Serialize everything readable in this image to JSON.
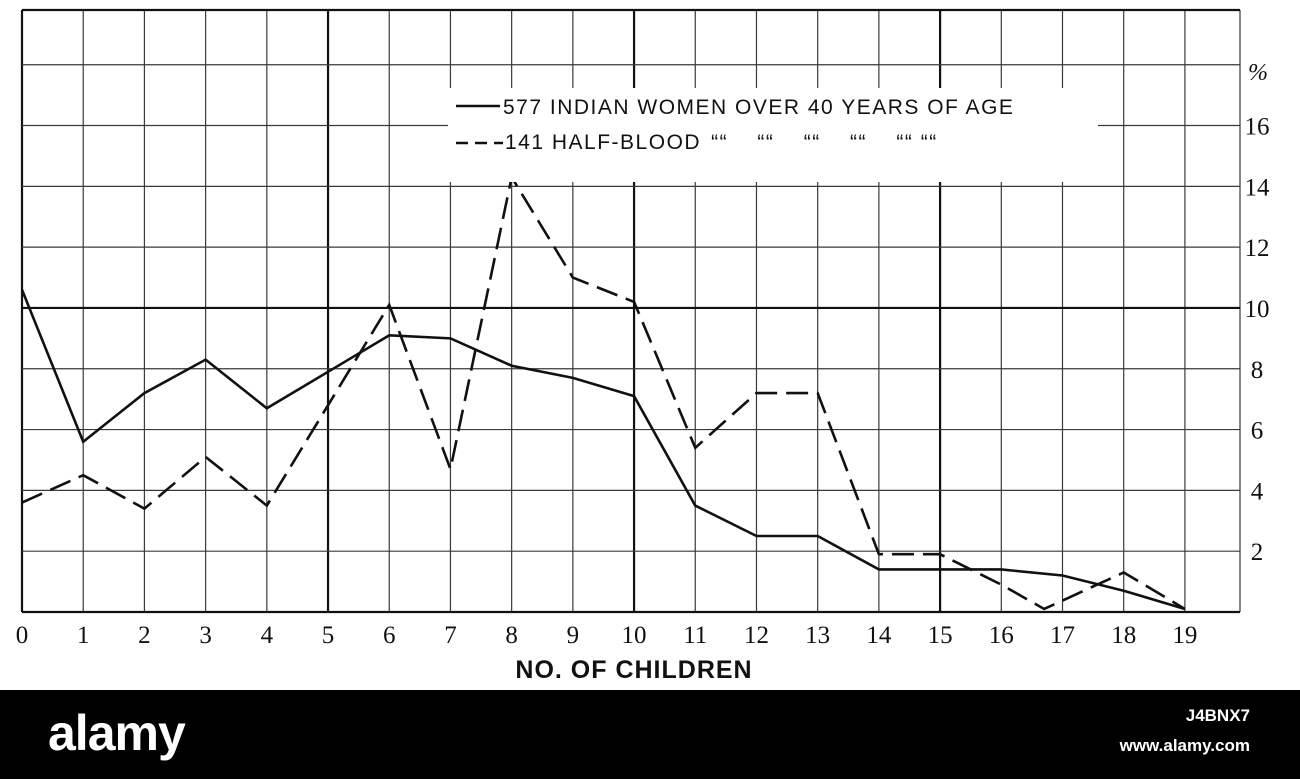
{
  "chart_data": {
    "type": "line",
    "xlabel": "NO. OF CHILDREN",
    "y_unit_label": "%",
    "x": [
      0,
      1,
      2,
      3,
      4,
      5,
      6,
      7,
      8,
      9,
      10,
      11,
      12,
      13,
      14,
      15,
      16,
      17,
      18,
      19
    ],
    "x_tick_labels": [
      "0",
      "1",
      "2",
      "3",
      "4",
      "5",
      "6",
      "7",
      "8",
      "9",
      "10",
      "11",
      "12",
      "13",
      "14",
      "15",
      "16",
      "17",
      "18",
      "19"
    ],
    "y_tick_labels": [
      "2",
      "4",
      "6",
      "8",
      "10",
      "12",
      "14",
      "16"
    ],
    "y_ticks": [
      2,
      4,
      6,
      8,
      10,
      12,
      14,
      16
    ],
    "xlim": [
      0,
      19.9
    ],
    "ylim": [
      0,
      19.8
    ],
    "grid": true,
    "legend_position": "top-right",
    "series": [
      {
        "name": "577 INDIAN WOMEN OVER 40 YEARS OF AGE",
        "style": "solid",
        "x": [
          0,
          1,
          2,
          3,
          4,
          5,
          6,
          7,
          8,
          9,
          10,
          11,
          12,
          13,
          14,
          15,
          16,
          17,
          18,
          19
        ],
        "values": [
          10.6,
          5.6,
          7.2,
          8.3,
          6.7,
          7.9,
          9.1,
          9.0,
          8.1,
          7.7,
          7.1,
          3.5,
          2.5,
          2.5,
          1.4,
          1.4,
          1.4,
          1.2,
          0.7,
          0.1
        ]
      },
      {
        "name": "141 HALF-BLOOD",
        "legend_ditto_marks": "““    ““    ““    ““    ““ ““",
        "style": "dashed",
        "x": [
          0,
          1,
          2,
          3,
          4,
          5,
          6,
          7,
          8,
          9,
          10,
          11,
          12,
          13,
          14,
          15,
          16,
          16.7,
          18,
          19
        ],
        "values": [
          3.6,
          4.5,
          3.4,
          5.1,
          3.5,
          6.8,
          10.1,
          4.7,
          14.3,
          11.0,
          10.2,
          5.4,
          7.2,
          7.2,
          1.9,
          1.9,
          0.9,
          0.1,
          1.3,
          0.1
        ]
      }
    ]
  },
  "watermark": {
    "logo": "alamy",
    "image_id": "J4BNX7",
    "url": "www.alamy.com"
  }
}
